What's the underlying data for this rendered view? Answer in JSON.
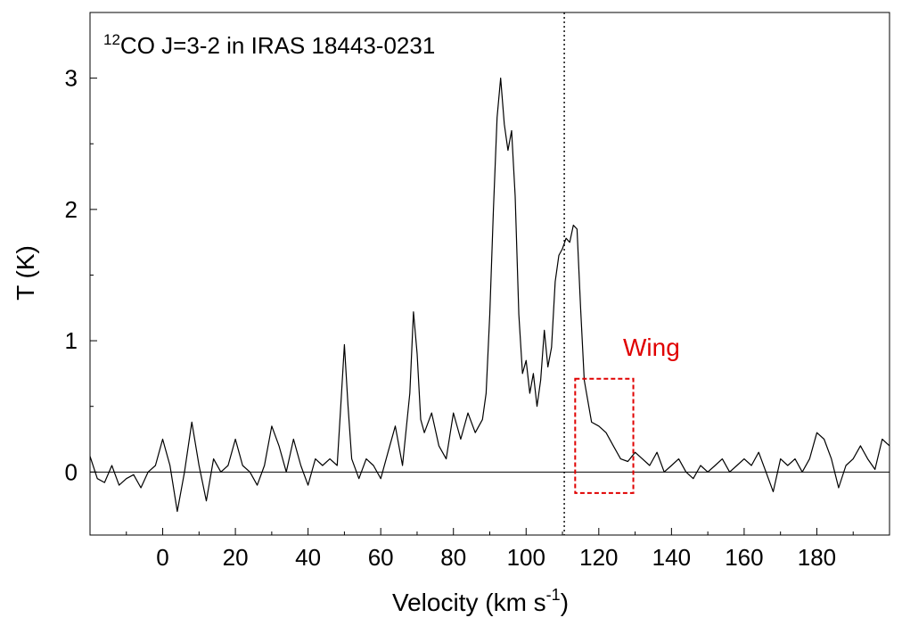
{
  "chart_data": {
    "type": "line",
    "title_prefix": "12",
    "title": "CO J=3-2 in IRAS 18443-0231",
    "xlabel_main": "Velocity (km s",
    "xlabel_exp": "-1",
    "xlabel_close": ")",
    "ylabel": "T (K)",
    "xlim": [
      -20,
      200
    ],
    "ylim": [
      -0.48,
      3.5
    ],
    "x_ticks": [
      0,
      20,
      40,
      60,
      80,
      100,
      120,
      140,
      160,
      180
    ],
    "x_tick_labels": [
      "0",
      "20",
      "40",
      "60",
      "80",
      "100",
      "120",
      "140",
      "160",
      "180"
    ],
    "y_ticks": [
      0,
      1,
      2,
      3
    ],
    "y_tick_labels": [
      "0",
      "1",
      "2",
      "3"
    ],
    "baseline": 0,
    "reference_velocity": 110.5,
    "annotation": {
      "label": "Wing",
      "color": "#e00000",
      "x_range": [
        113.5,
        129.5
      ],
      "y_range": [
        -0.16,
        0.71
      ]
    },
    "series": [
      {
        "color": "#000000",
        "x": [
          -20,
          -18,
          -16,
          -14,
          -12,
          -10,
          -8,
          -6,
          -4,
          -2,
          0,
          2,
          4,
          6,
          8,
          10,
          12,
          14,
          16,
          18,
          20,
          22,
          24,
          26,
          28,
          30,
          32,
          34,
          36,
          38,
          40,
          42,
          44,
          46,
          48,
          49,
          50,
          51,
          52,
          54,
          56,
          58,
          60,
          62,
          64,
          66,
          68,
          69,
          70,
          71,
          72,
          74,
          76,
          78,
          80,
          82,
          84,
          86,
          88,
          89,
          90,
          91,
          92,
          93,
          94,
          95,
          96,
          97,
          98,
          99,
          100,
          101,
          102,
          103,
          104,
          105,
          106,
          107,
          108,
          109,
          110,
          111,
          112,
          113,
          114,
          115,
          116,
          118,
          120,
          122,
          124,
          126,
          128,
          130,
          132,
          134,
          136,
          138,
          140,
          142,
          144,
          146,
          148,
          150,
          152,
          154,
          156,
          158,
          160,
          162,
          164,
          166,
          168,
          170,
          172,
          174,
          176,
          178,
          180,
          182,
          184,
          186,
          188,
          190,
          192,
          194,
          196,
          198,
          200
        ],
        "y": [
          0.12,
          -0.05,
          -0.08,
          0.05,
          -0.1,
          -0.05,
          -0.02,
          -0.12,
          0.0,
          0.05,
          0.25,
          0.05,
          -0.3,
          0.0,
          0.38,
          0.05,
          -0.22,
          0.1,
          0.0,
          0.05,
          0.25,
          0.05,
          0.0,
          -0.1,
          0.05,
          0.35,
          0.2,
          0.0,
          0.25,
          0.05,
          -0.1,
          0.1,
          0.05,
          0.1,
          0.05,
          0.5,
          0.97,
          0.5,
          0.1,
          -0.05,
          0.1,
          0.05,
          -0.05,
          0.15,
          0.35,
          0.05,
          0.6,
          1.22,
          0.9,
          0.4,
          0.3,
          0.45,
          0.2,
          0.1,
          0.45,
          0.25,
          0.45,
          0.3,
          0.4,
          0.6,
          1.2,
          2.0,
          2.7,
          3.0,
          2.65,
          2.45,
          2.6,
          2.1,
          1.2,
          0.75,
          0.85,
          0.6,
          0.75,
          0.5,
          0.7,
          1.08,
          0.8,
          0.95,
          1.45,
          1.65,
          1.7,
          1.78,
          1.75,
          1.88,
          1.85,
          1.25,
          0.7,
          0.38,
          0.35,
          0.3,
          0.2,
          0.1,
          0.08,
          0.15,
          0.1,
          0.05,
          0.15,
          0.0,
          0.05,
          0.1,
          0.0,
          -0.05,
          0.05,
          0.0,
          0.05,
          0.1,
          0.0,
          0.05,
          0.1,
          0.05,
          0.15,
          0.0,
          -0.15,
          0.1,
          0.05,
          0.1,
          0.0,
          0.1,
          0.3,
          0.25,
          0.1,
          -0.12,
          0.05,
          0.1,
          0.2,
          0.1,
          0.02,
          0.25,
          0.2
        ]
      }
    ]
  }
}
